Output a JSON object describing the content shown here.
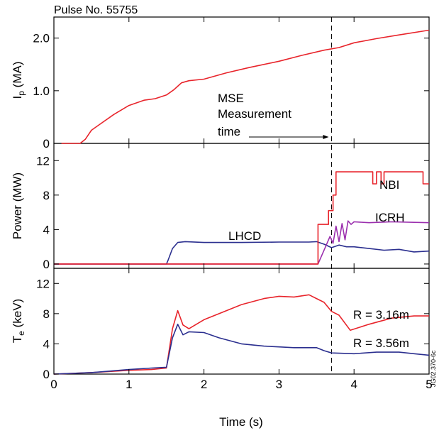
{
  "chart_data": [
    {
      "type": "line",
      "panel": "top",
      "title": "Pulse No. 55755",
      "ylabel": "I",
      "ylabel_sub": "p",
      "ylabel_unit": " (MA)",
      "ylim": [
        0,
        2.4
      ],
      "xlim": [
        0,
        5
      ],
      "yticks": [
        0,
        1.0,
        2.0
      ],
      "ytick_labels": [
        "0",
        "1.0",
        "2.0"
      ],
      "grid": false,
      "annotation": {
        "lines": [
          "MSE",
          "Measurement",
          "time"
        ],
        "arrow_to_x": 3.7
      },
      "series": [
        {
          "color": "#e8242b",
          "x": [
            0.1,
            0.35,
            0.42,
            0.5,
            0.6,
            0.8,
            1.0,
            1.2,
            1.35,
            1.5,
            1.6,
            1.7,
            1.8,
            2.0,
            2.3,
            2.6,
            3.0,
            3.3,
            3.6,
            3.8,
            4.0,
            4.3,
            4.6,
            5.0
          ],
          "y": [
            0.0,
            0.0,
            0.08,
            0.25,
            0.35,
            0.55,
            0.72,
            0.82,
            0.85,
            0.92,
            1.02,
            1.15,
            1.19,
            1.22,
            1.34,
            1.44,
            1.56,
            1.67,
            1.77,
            1.82,
            1.91,
            1.99,
            2.06,
            2.15
          ]
        }
      ]
    },
    {
      "type": "line",
      "panel": "middle",
      "ylabel": "Power (MW)",
      "ylim": [
        -0.5,
        14
      ],
      "xlim": [
        0,
        5
      ],
      "yticks": [
        0,
        4,
        8,
        12
      ],
      "ytick_labels": [
        "0",
        "4",
        "8",
        "12"
      ],
      "grid": false,
      "series": [
        {
          "name": "LHCD",
          "color": "#2b2f8f",
          "x": [
            0,
            1.5,
            1.52,
            1.58,
            1.65,
            1.75,
            2.0,
            2.5,
            3.0,
            3.4,
            3.5,
            3.6,
            3.7,
            3.8,
            3.9,
            4.0,
            4.2,
            4.4,
            4.6,
            4.8,
            5.0
          ],
          "y": [
            0,
            0,
            0.4,
            1.8,
            2.5,
            2.6,
            2.5,
            2.5,
            2.55,
            2.55,
            2.6,
            2.3,
            1.9,
            2.2,
            2.0,
            2.0,
            1.8,
            1.6,
            1.7,
            1.4,
            1.5
          ]
        },
        {
          "name": "ICRH",
          "color": "#9b2fae",
          "x": [
            0,
            3.52,
            3.62,
            3.68,
            3.72,
            3.76,
            3.8,
            3.84,
            3.88,
            3.92,
            3.96,
            4.0,
            4.2,
            4.5,
            5.0
          ],
          "y": [
            0,
            0,
            2.0,
            3.2,
            2.4,
            4.4,
            2.6,
            4.7,
            2.8,
            5.0,
            4.6,
            4.9,
            4.8,
            4.9,
            4.8
          ]
        },
        {
          "name": "NBI",
          "color": "#e8242b",
          "x": [
            0,
            3.52,
            3.52,
            3.66,
            3.66,
            3.72,
            3.72,
            3.76,
            3.76,
            3.8,
            3.8,
            4.25,
            4.25,
            4.3,
            4.3,
            4.36,
            4.36,
            4.4,
            4.4,
            4.92,
            4.92,
            5.0
          ],
          "y": [
            0,
            0,
            4.6,
            4.6,
            6.2,
            6.2,
            8.0,
            8.0,
            10.7,
            10.7,
            10.7,
            10.7,
            9.3,
            9.3,
            10.7,
            10.7,
            9.3,
            9.3,
            10.7,
            10.7,
            9.3,
            9.3
          ]
        }
      ]
    },
    {
      "type": "line",
      "panel": "bottom",
      "ylabel": "T",
      "ylabel_sub": "e",
      "ylabel_unit": " (keV)",
      "xlabel": "Time (s)",
      "ylim": [
        0,
        14
      ],
      "xlim": [
        0,
        5
      ],
      "xticks": [
        0,
        1,
        2,
        3,
        4,
        5
      ],
      "xtick_labels": [
        "0",
        "1",
        "2",
        "3",
        "4",
        "5"
      ],
      "yticks": [
        0,
        4,
        8,
        12
      ],
      "ytick_labels": [
        "0",
        "4",
        "8",
        "12"
      ],
      "grid": false,
      "side_label": "JG02.370-6c",
      "series": [
        {
          "name": "R = 3.16m",
          "color": "#e8242b",
          "x": [
            0.0,
            0.5,
            1.0,
            1.3,
            1.5,
            1.58,
            1.65,
            1.72,
            1.8,
            2.0,
            2.2,
            2.5,
            2.8,
            3.0,
            3.2,
            3.4,
            3.5,
            3.6,
            3.7,
            3.8,
            3.95,
            4.2,
            4.5,
            4.8,
            5.0
          ],
          "y": [
            0.0,
            0.2,
            0.5,
            0.6,
            0.8,
            6.0,
            8.4,
            6.5,
            6.0,
            7.2,
            8.0,
            9.2,
            10.0,
            10.3,
            10.2,
            10.5,
            10.0,
            9.5,
            8.3,
            7.8,
            5.8,
            6.6,
            7.4,
            7.7,
            7.7
          ]
        },
        {
          "name": "R = 3.56m",
          "color": "#2b2f8f",
          "x": [
            0.0,
            0.5,
            1.0,
            1.3,
            1.5,
            1.58,
            1.65,
            1.72,
            1.8,
            2.0,
            2.2,
            2.5,
            2.8,
            3.0,
            3.2,
            3.5,
            3.6,
            3.7,
            4.0,
            4.3,
            4.6,
            4.8,
            5.0
          ],
          "y": [
            0.0,
            0.2,
            0.6,
            0.8,
            0.9,
            4.8,
            6.6,
            5.2,
            5.6,
            5.5,
            4.8,
            4.0,
            3.7,
            3.6,
            3.5,
            3.5,
            3.1,
            2.8,
            2.7,
            2.9,
            2.9,
            2.7,
            2.5
          ]
        }
      ]
    }
  ]
}
